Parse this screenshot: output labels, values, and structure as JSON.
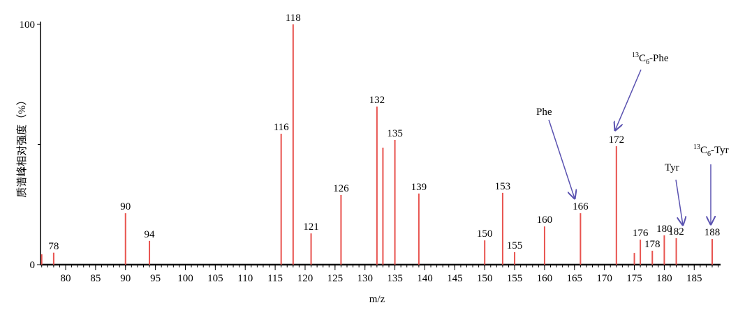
{
  "chart_data": {
    "type": "spectrum",
    "x_label": "m/z",
    "y_label": "质谱峰相对强度（%）",
    "x": [
      78,
      90,
      94,
      116,
      118,
      121,
      126,
      132,
      135,
      139,
      150,
      153,
      155,
      160,
      166,
      172,
      176,
      178,
      180,
      182,
      188
    ],
    "values": [
      5,
      21.4,
      9.9,
      54.5,
      100,
      13,
      29,
      65.8,
      51.9,
      29.6,
      10.1,
      29.9,
      5.2,
      15.9,
      21.4,
      49.3,
      10.4,
      5.8,
      12.2,
      11,
      10.7
    ],
    "minor_peaks": {
      "x": [
        76,
        133,
        175
      ],
      "values": [
        4.3,
        48.7,
        4.9
      ]
    },
    "color": "#e8534f",
    "xlim": [
      75.8,
      189.4
    ],
    "ylim": [
      0,
      100
    ],
    "xticks": [
      80,
      85,
      90,
      95,
      100,
      105,
      110,
      115,
      120,
      125,
      130,
      135,
      140,
      145,
      150,
      155,
      160,
      165,
      170,
      175,
      180,
      185
    ],
    "xminor_step": 1,
    "yticks": [
      0,
      100
    ],
    "yminor_ticks": [
      50
    ],
    "annotations": [
      {
        "text": "Phe"
      },
      {
        "sup": "13",
        "base": "C",
        "sub": "6",
        "rest": "-Phe"
      },
      {
        "text": "Tyr"
      },
      {
        "sup": "13",
        "base": "C",
        "sub": "6",
        "rest": "-Tyr"
      }
    ]
  }
}
